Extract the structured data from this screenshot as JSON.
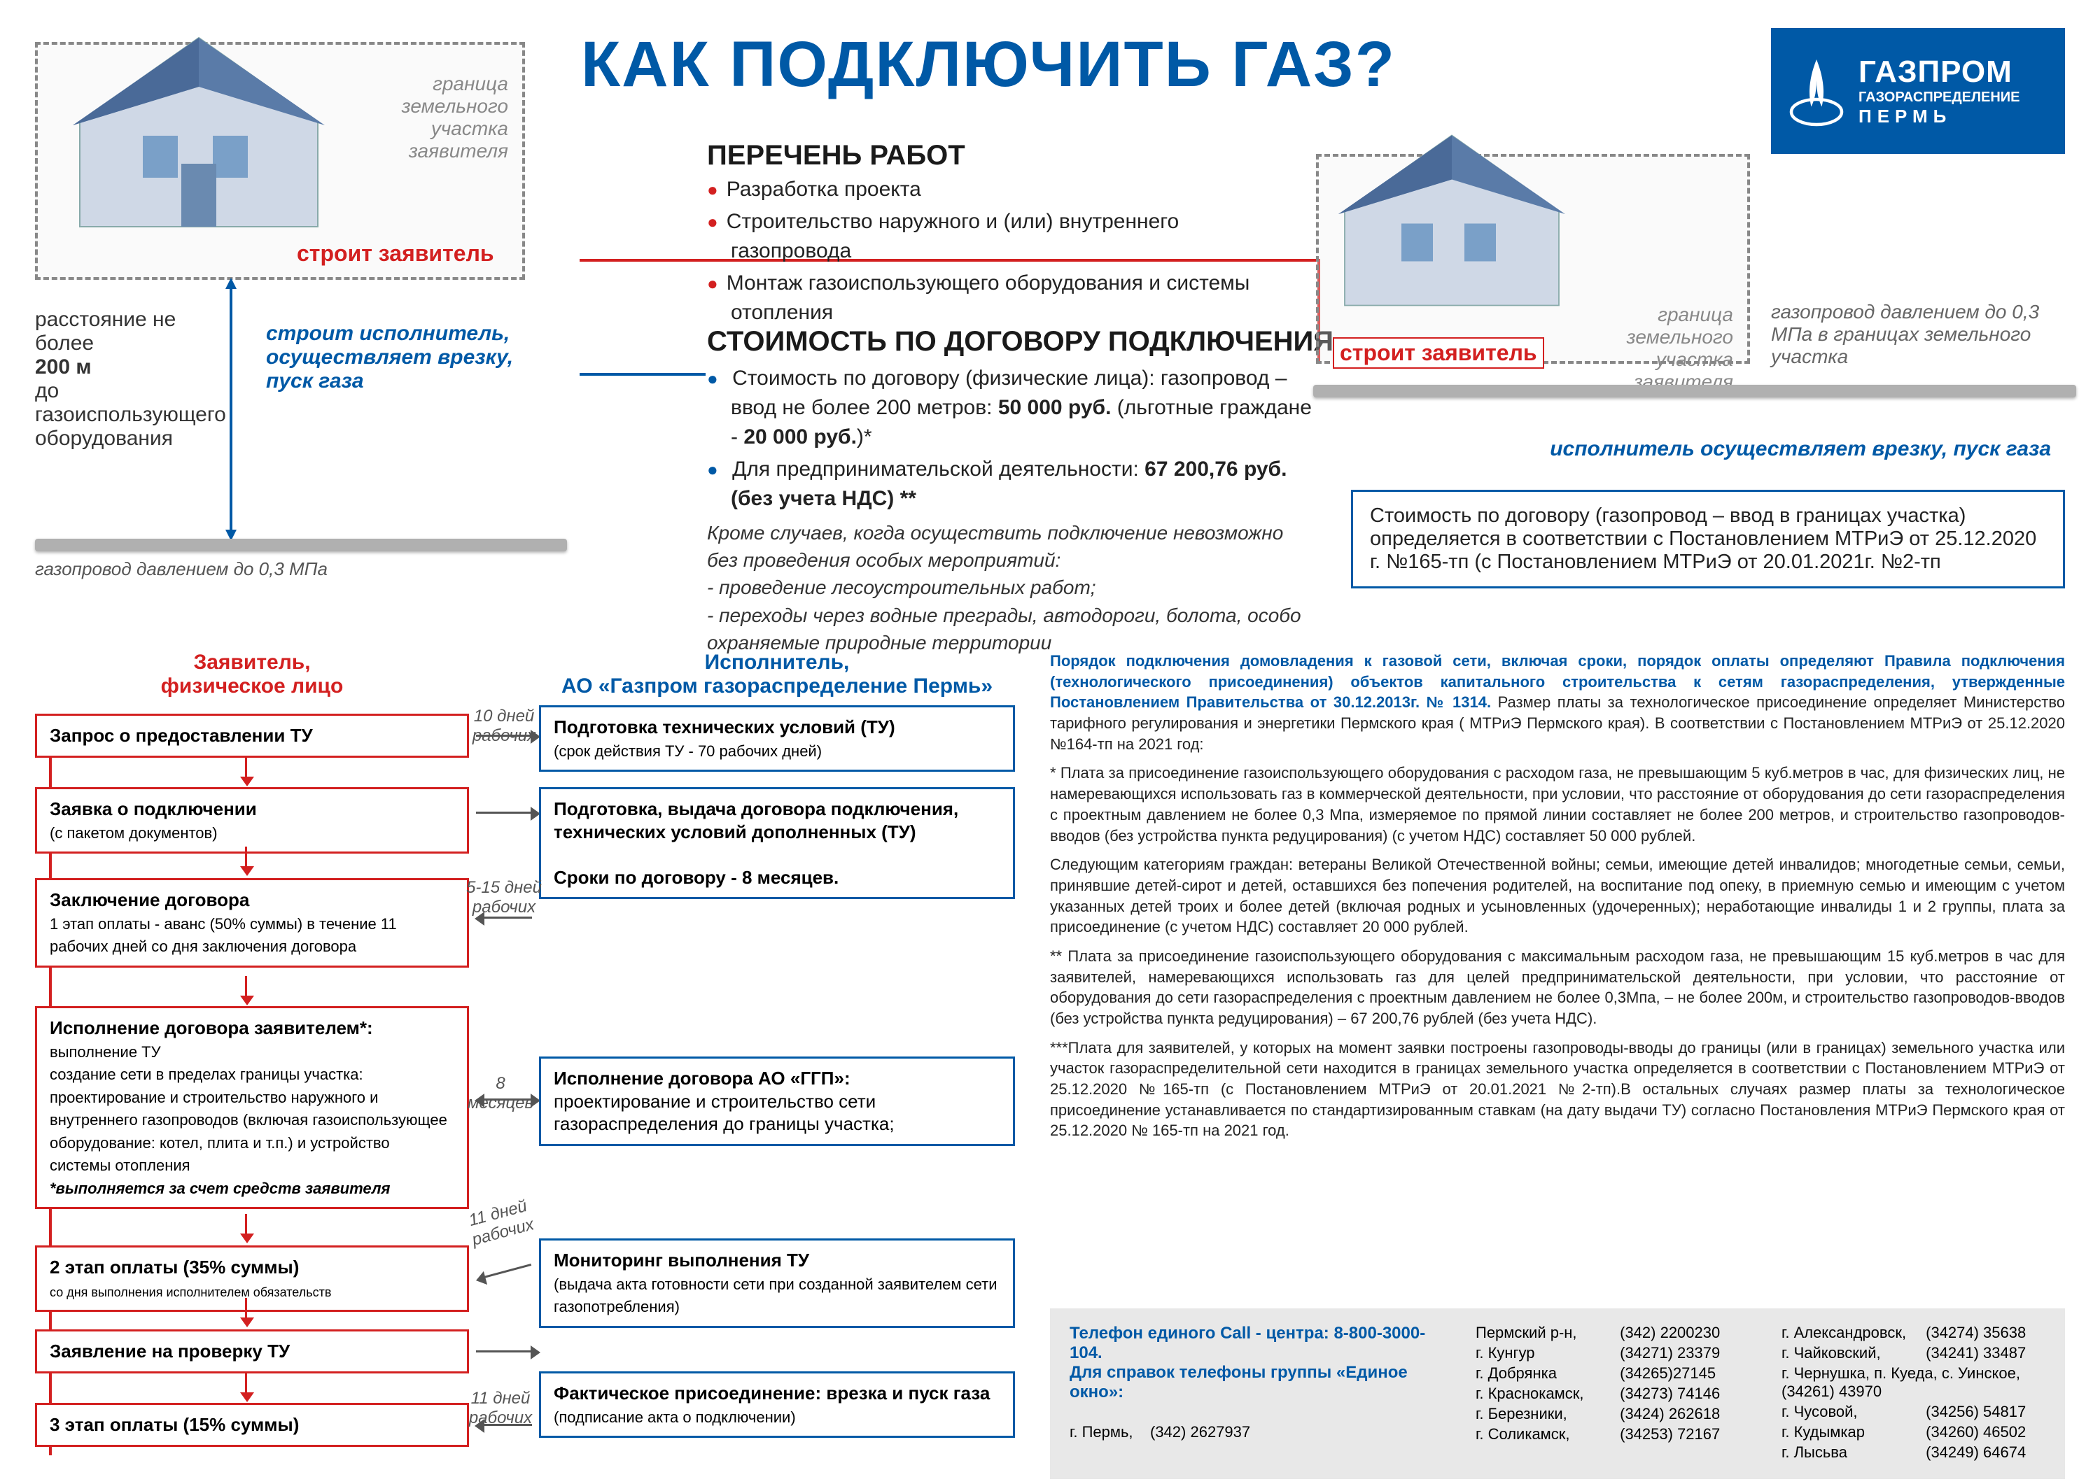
{
  "title": "КАК ПОДКЛЮЧИТЬ ГАЗ?",
  "logo": {
    "main": "ГАЗПРОМ",
    "sub": "ГАЗОРАСПРЕДЕЛЕНИЕ",
    "city": "ПЕРМЬ"
  },
  "colors": {
    "blue": "#0059a6",
    "red": "#d32020",
    "gray": "#888888",
    "bg_gray": "#e8e8e8"
  },
  "diagram": {
    "boundary_label": "граница земельного участка заявителя",
    "builds_applicant": "строит  заявитель",
    "left_distance": "расстояние не более",
    "left_distance_bold": "200 м",
    "left_distance_rest": "до газоиспользующего оборудования",
    "left_executor": "строит  исполнитель, осуществляет врезку, пуск газа",
    "pipe_left_label": "газопровод давлением до 0,3 МПа",
    "right_gray": "газопровод давлением до 0,3 МПа в границах земельного участка",
    "right_blue": "исполнитель осуществляет врезку, пуск газа"
  },
  "works_heading": "ПЕРЕЧЕНЬ РАБОТ",
  "works_items": [
    "Разработка проекта",
    "Строительство наружного и (или) внутреннего газопровода",
    "Монтаж газоиспользующего оборудования и системы отопления"
  ],
  "cost_heading": "СТОИМОСТЬ ПО ДОГОВОРУ ПОДКЛЮЧЕНИЯ",
  "cost_items": [
    {
      "pre": "Стоимость  по договору (физические лица): газопровод – ввод не более 200 метров: ",
      "bold": "50 000 руб.",
      "post": " (льготные граждане -  ",
      "bold2": "20 000 руб.",
      "post2": ")*"
    },
    {
      "pre": "Для предпринимательской деятельности: ",
      "bold": "67 200,76 руб. (без учета НДС) **"
    }
  ],
  "cost_note": "Кроме случаев, когда осуществить подключение невозможно без проведения особых мероприятий:\n- проведение лесоустроительных работ;\n- переходы через водные преграды, автодороги, болота, особо охраняемые природные территории",
  "cost_right": "Стоимость  по договору (газопровод – ввод в границах участка) определяется в соответствии с Постановлением МТРиЭ от 25.12.2020 г. №165-тп (с Постановлением МТРиЭ от 20.01.2021г. №2-тп",
  "flow": {
    "left_header": "Заявитель,\nфизическое лицо",
    "right_header": "Исполнитель,\nАО «Газпром газораспределение Пермь»",
    "l1": {
      "title": "Запрос о предоставлении ТУ"
    },
    "r1": {
      "title": "Подготовка технических условий  (ТУ)",
      "sub": "(срок действия ТУ - 70 рабочих дней)"
    },
    "a1": "10 дней рабочих",
    "l2": {
      "title": "Заявка о подключении",
      "sub": "(с пакетом документов)"
    },
    "r2": {
      "title": "Подготовка, выдача договора подключения, технических условий дополненных (ТУ)",
      "sub2": "Сроки по договору - 8 месяцев."
    },
    "l3": {
      "title": "Заключение договора",
      "sub": "1 этап оплаты - аванс (50% суммы) в течение 11 рабочих дней со дня заключения договора"
    },
    "a3": "5-15 дней рабочих",
    "l4": {
      "title": "Исполнение договора заявителем*:",
      "sub": "выполнение ТУ\nсоздание сети в пределах границы участка: проектирование и строительство наружного и внутреннего газопроводов (включая газоиспользующее оборудование: котел, плита и т.п.) и устройство системы отопления",
      "note": "*выполняется за счет средств заявителя"
    },
    "r4": {
      "title": "Исполнение договора АО «ГГП»:",
      "sub": "проектирование и строительство сети газораспределения до границы участка;"
    },
    "a4": "8 месяцев",
    "l5": {
      "title": "2 этап оплаты (35% суммы)",
      "sub": "со дня выполнения исполнителем обязательств"
    },
    "r5": {
      "title": "Мониторинг выполнения ТУ",
      "sub": "(выдача акта готовности сети при созданной заявителем сети газопотребления)"
    },
    "a5": "11 дней рабочих",
    "l6": {
      "title": "Заявление на проверку ТУ"
    },
    "r6": {
      "title": "Фактическое присоединение: врезка и пуск газа",
      "sub": "(подписание акта о подключении)"
    },
    "a6": "11 дней рабочих",
    "l7": {
      "title": "3 этап оплаты (15% суммы)"
    }
  },
  "right_text": {
    "intro_bold": "Порядок подключения домовладения к газовой сети, включая сроки, порядок оплаты определяют Правила подключения (технологического присоединения) объектов капитального строительства к сетям газораспределения, утвержденные Постановлением Правительства от 30.12.2013г. № 1314.",
    "intro_rest": " Размер платы за технологическое присоединение определяет Министерство тарифного регулирования и энергетики Пермского края ( МТРиЭ Пермского края). В соответствии с Постановлением МТРиЭ от 25.12.2020  №164-тп на 2021 год:",
    "p1": "* Плата за присоединение газоиспользующего оборудования с расходом газа, не превышающим 5 куб.метров в час, для физических лиц, не намеревающихся использовать газ в коммерческой деятельности, при условии, что расстояние от оборудования до сети газораспределения с проектным давлением не более 0,3 Мпа, измеряемое по прямой линии составляет не более 200 метров, и строительство газопроводов-вводов (без устройства пункта редуцирования) (с учетом НДС) составляет 50 000 рублей.",
    "p2": "Следующим категориям граждан:  ветераны Великой Отечественной войны; семьи, имеющие детей инвалидов; многодетные семьи, семьи, принявшие детей-сирот и детей, оставшихся без попечения родителей, на воспитание под опеку, в приемную семью и имеющим с учетом указанных детей троих и более детей (включая родных и усыновленных (удочеренных); неработающие инвалиды 1 и 2 группы, плата за присоединение (с учетом НДС) составляет  20 000 рублей.",
    "p3": "** Плата за присоединение газоиспользующего оборудования с максимальным расходом газа, не превышающим 15 куб.метров в час для заявителей, намеревающихся использовать газ для целей предпринимательской деятельности, при условии, что расстояние от оборудования до сети газораспределения с проектным давлением не более 0,3Мпа, – не более 200м, и строительство газопроводов-вводов (без устройства пункта редуцирования) – 67 200,76 рублей (без учета НДС).",
    "p4": "***Плата для заявителей, у которых на момент заявки построены газопроводы-вводы до границы (или в границах) земельного участка или участок газораспределительной сети находится в границах земельного участка определяется в соответствии с Постановлением МТРиЭ от 25.12.2020 №165-тп (с Постановлением МТРиЭ от 20.01.2021 №2-тп).В остальных случаях размер платы за технологическое присоединение устанавливается по стандартизированным ставкам (на дату выдачи ТУ) согласно Постановления МТРиЭ Пермского края от 25.12.2020 № 165-тп на 2021 год."
  },
  "contacts": {
    "call": "Телефон единого Call - центра: 8-800-3000-104.",
    "spravka": "Для справок телефоны группы «Единое окно»:",
    "col0": [
      [
        "г. Пермь,",
        "(342) 2627937"
      ]
    ],
    "col1": [
      [
        "Пермский р-н,",
        "(342) 2200230"
      ],
      [
        "г. Кунгур",
        "(34271) 23379"
      ],
      [
        "г. Добрянка",
        "(34265)27145"
      ],
      [
        "г. Краснокамск,",
        "(34273) 74146"
      ],
      [
        "г. Березники,",
        "(3424) 262618"
      ],
      [
        "г. Соликамск,",
        "(34253) 72167"
      ]
    ],
    "col2": [
      [
        "г. Александровск,",
        "(34274) 35638"
      ],
      [
        "г. Чайковский,",
        "(34241) 33487"
      ],
      [
        "г. Чернушка, п. Куеда, с. Уинское,",
        "(34261) 43970"
      ],
      [
        "г. Чусовой,",
        "(34256) 54817"
      ],
      [
        "г. Кудымкар",
        "(34260) 46502"
      ],
      [
        "г. Лысьва",
        "(34249) 64674"
      ]
    ]
  }
}
